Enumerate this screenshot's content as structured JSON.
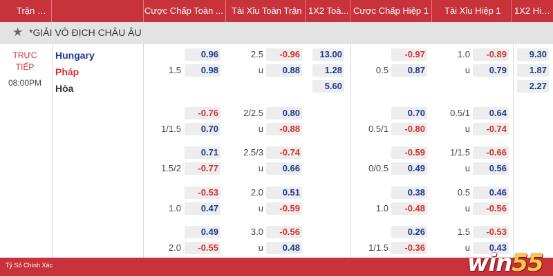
{
  "header": {
    "match": "Trận Đấu",
    "handicap_full": "Cược Chấp Toàn ...",
    "ou_full": "Tài Xỉu Toàn Trận",
    "x12_full": "1X2 Toà...",
    "handicap_half": "Cược Chấp Hiệp 1",
    "ou_half": "Tài Xỉu Hiệp 1",
    "x12_half": "1X2 Hiệ..."
  },
  "league": {
    "name": "*GIẢI VÔ ĐỊCH CHÂU ÂU"
  },
  "match": {
    "status_line1": "TRỰC",
    "status_line2": "TIẾP",
    "time": "08:00PM",
    "home": "Hungary",
    "away": "Pháp",
    "draw": "Hòa"
  },
  "rows": [
    {
      "fh_line": "1.5",
      "fh_top": "0.96",
      "fh_bot": "0.98",
      "fo_line": "2.5",
      "fo_top": "-0.96",
      "fo_bot": "0.88",
      "x1": "13.00",
      "x2": "1.28",
      "x3": "5.60",
      "hh_line": "0.5",
      "hh_top": "-0.97",
      "hh_bot": "0.87",
      "ho_line": "1.0",
      "ho_top": "-0.89",
      "ho_bot": "0.79",
      "h1": "9.30",
      "h2": "1.87",
      "h3": "2.27"
    },
    {
      "fh_line": "1/1.5",
      "fh_top": "-0.76",
      "fh_bot": "0.70",
      "fo_line": "2/2.5",
      "fo_top": "0.80",
      "fo_bot": "-0.88",
      "hh_line": "0.5/1",
      "hh_top": "0.70",
      "hh_bot": "-0.80",
      "ho_line": "0.5/1",
      "ho_top": "0.64",
      "ho_bot": "-0.74"
    },
    {
      "fh_line": "1.5/2",
      "fh_top": "0.71",
      "fh_bot": "-0.77",
      "fo_line": "2.5/3",
      "fo_top": "-0.74",
      "fo_bot": "0.66",
      "hh_line": "0/0.5",
      "hh_top": "-0.59",
      "hh_bot": "0.49",
      "ho_line": "1/1.5",
      "ho_top": "-0.66",
      "ho_bot": "0.56"
    },
    {
      "fh_line": "1.0",
      "fh_top": "-0.53",
      "fh_bot": "0.47",
      "fo_line": "2.0",
      "fo_top": "0.51",
      "fo_bot": "-0.59",
      "hh_line": "1.0",
      "hh_top": "0.38",
      "hh_bot": "-0.48",
      "ho_line": "0.5",
      "ho_top": "0.46",
      "ho_bot": "-0.56"
    },
    {
      "fh_line": "2.0",
      "fh_top": "0.49",
      "fh_bot": "-0.55",
      "fo_line": "3.0",
      "fo_top": "-0.56",
      "fo_bot": "0.48",
      "hh_line": "1/1.5",
      "hh_top": "0.26",
      "hh_bot": "-0.36",
      "ho_line": "1.5",
      "ho_top": "-0.53",
      "ho_bot": "0.43"
    }
  ],
  "ou_label": "u",
  "footer": {
    "label": "Tỷ Số Chính Xác"
  },
  "logo": {
    "part1": "win",
    "part2": "55"
  },
  "colors": {
    "header_bg": "#c8323a",
    "negative": "#d32f2f",
    "positive": "#1b3a8f"
  }
}
